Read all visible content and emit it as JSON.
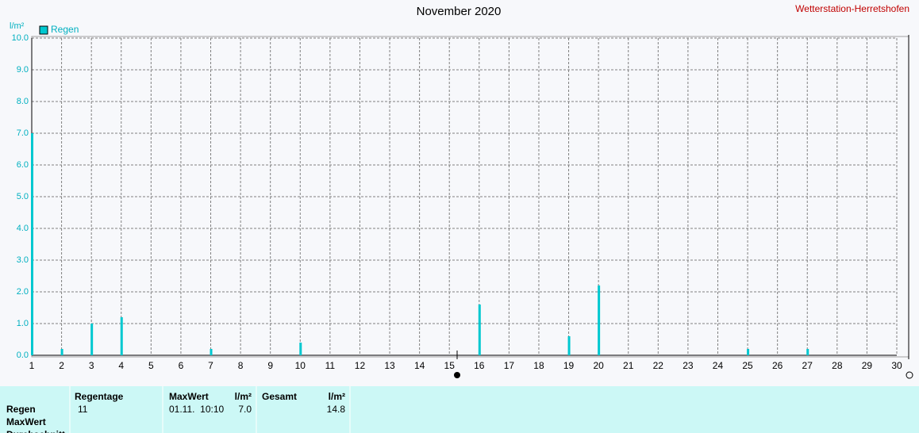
{
  "chart_data": {
    "type": "bar",
    "title": "November 2020",
    "station": "Wetterstation-Herretshofen",
    "y_label": "l/m²",
    "legend": "top-left",
    "series": [
      {
        "name": "Regen",
        "color": "#00c8d0",
        "x": [
          1,
          2,
          3,
          4,
          7,
          10,
          16,
          19,
          20,
          25,
          27
        ],
        "values": [
          7.0,
          0.2,
          1.0,
          1.2,
          0.2,
          0.4,
          1.6,
          0.6,
          2.2,
          0.2,
          0.2
        ]
      }
    ],
    "xlim": [
      1,
      30
    ],
    "xticks": [
      1,
      2,
      3,
      4,
      5,
      6,
      7,
      8,
      9,
      10,
      11,
      12,
      13,
      14,
      15,
      16,
      17,
      18,
      19,
      20,
      21,
      22,
      23,
      24,
      25,
      26,
      27,
      28,
      29,
      30
    ],
    "ylim": [
      0,
      10
    ],
    "yticks": [
      {
        "value": 0,
        "label": "0.0"
      },
      {
        "value": 1,
        "label": "1.0"
      },
      {
        "value": 2,
        "label": "2.0"
      },
      {
        "value": 3,
        "label": "3.0"
      },
      {
        "value": 4,
        "label": "4.0"
      },
      {
        "value": 5,
        "label": "5.0"
      },
      {
        "value": 6,
        "label": "6.0"
      },
      {
        "value": 7,
        "label": "7.0"
      },
      {
        "value": 8,
        "label": "8.0"
      },
      {
        "value": 9,
        "label": "9.0"
      },
      {
        "value": 10,
        "label": "10.0"
      }
    ],
    "grid": true
  },
  "table": {
    "headers": [
      "Regentage",
      "MaxWert",
      "l/m²",
      "Gesamt",
      "l/m²"
    ],
    "rows": [
      {
        "label": "Regen",
        "cells": [
          "11",
          "01.11.  10:10",
          "7.0",
          "14.8"
        ]
      },
      {
        "label": "MaxWert",
        "cells": []
      },
      {
        "label": "Durchschnitt",
        "cells": []
      }
    ]
  }
}
